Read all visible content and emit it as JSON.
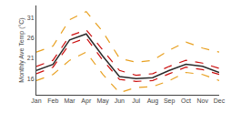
{
  "chart_data": {
    "type": "line",
    "categories": [
      "Jan",
      "Feb",
      "Mar",
      "Apr",
      "May",
      "Jun",
      "Jul",
      "Aug",
      "Sep",
      "Oct",
      "Nov",
      "Dec"
    ],
    "series": [
      {
        "color": "#e8a020",
        "line_style": "dashed",
        "values": [
          15.5,
          17.0,
          20.5,
          22.5,
          17.0,
          12.5,
          13.8,
          14.0,
          15.5,
          17.5,
          17.0,
          15.5
        ]
      },
      {
        "color": "#e8a020",
        "line_style": "dashed",
        "values": [
          22.5,
          24.0,
          30.5,
          32.5,
          27.5,
          21.0,
          20.0,
          20.5,
          23.0,
          25.0,
          23.5,
          22.5
        ]
      },
      {
        "color": "#cc1111",
        "line_style": "dashed",
        "values": [
          17.2,
          18.8,
          24.5,
          26.0,
          20.5,
          15.8,
          15.3,
          15.5,
          17.2,
          18.8,
          18.2,
          17.0
        ]
      },
      {
        "color": "#cc1111",
        "line_style": "dashed",
        "values": [
          19.0,
          20.5,
          26.5,
          28.0,
          23.0,
          18.0,
          16.8,
          17.2,
          19.0,
          20.5,
          19.8,
          18.5
        ]
      },
      {
        "color": "#2b2b2b",
        "line_style": "solid",
        "values": [
          18.0,
          19.5,
          25.5,
          27.0,
          21.5,
          16.5,
          16.0,
          16.2,
          18.0,
          19.5,
          19.0,
          17.5
        ]
      }
    ],
    "ylabel": "Monthly Ave Temp (°C)",
    "ylim": [
      12,
      34
    ],
    "yticks": [
      16,
      21,
      26,
      31
    ],
    "grid": false
  }
}
